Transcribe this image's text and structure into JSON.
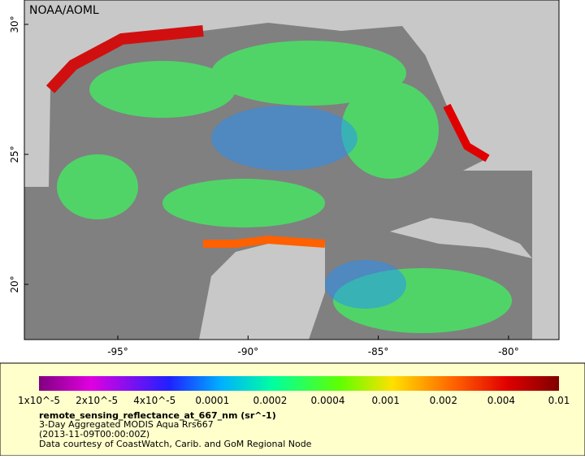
{
  "header": {
    "credit": "NOAA/AOML"
  },
  "map": {
    "lat_labels": [
      "30°",
      "25°",
      "20°"
    ],
    "lon_labels": [
      "-95°",
      "-90°",
      "-85°",
      "-80°"
    ]
  },
  "legend": {
    "colorbar_labels": [
      "1x10^-5",
      "2x10^-5",
      "4x10^-5",
      "0.0001",
      "0.0002",
      "0.0004",
      "0.001",
      "0.002",
      "0.004",
      "0.01"
    ],
    "variable": "remote_sensing_reflectance_at_667_nm (sr^-1)",
    "lines": [
      "3-Day Aggregated MODIS Aqua Rrs667",
      "(2013-11-09T00:00:00Z)",
      "Data courtesy of CoastWatch, Carib. and GoM Regional Node"
    ]
  }
}
